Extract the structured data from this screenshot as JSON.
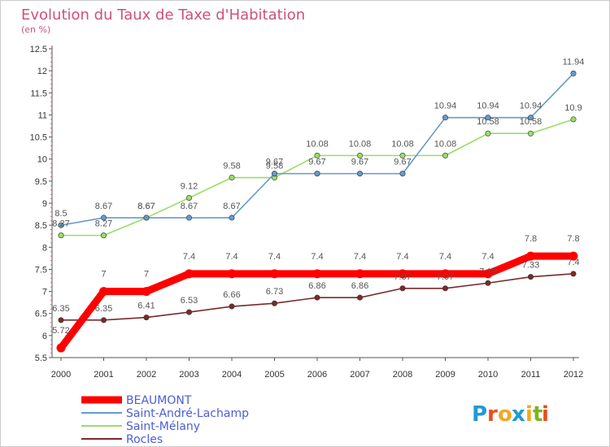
{
  "chart_data": {
    "type": "line",
    "title": "Evolution du Taux de Taxe d'Habitation",
    "subtitle": "(en %)",
    "x": [
      "2000",
      "2001",
      "2002",
      "2003",
      "2004",
      "2005",
      "2006",
      "2007",
      "2008",
      "2009",
      "2010",
      "2011",
      "2012"
    ],
    "ylim": [
      5.5,
      12.5
    ],
    "yticks": [
      "5.5",
      "6",
      "6.5",
      "7",
      "7.5",
      "8",
      "8.5",
      "9",
      "9.5",
      "10",
      "10.5",
      "11",
      "11.5",
      "12",
      "12.5"
    ],
    "grid": false,
    "legend": "bottom-left",
    "series": [
      {
        "name": "BEAUMONT",
        "color": "#ff0000",
        "values": [
          5.72,
          7,
          7,
          7.4,
          7.4,
          7.4,
          7.4,
          7.4,
          7.4,
          7.4,
          7.4,
          7.8,
          7.8
        ],
        "labels": [
          "5.72",
          "7",
          "7",
          "7.4",
          "7.4",
          "7.4",
          "7.4",
          "7.4",
          "7.4",
          "7.4",
          "7.4",
          "7.8",
          "7.8"
        ]
      },
      {
        "name": "Saint-André-Lachamp",
        "color": "#6699cc",
        "values": [
          8.5,
          8.67,
          8.67,
          8.67,
          8.67,
          9.67,
          9.67,
          9.67,
          9.67,
          10.94,
          10.94,
          10.94,
          11.94
        ],
        "labels": [
          "8.5",
          "8.67",
          "8.67",
          "8.67",
          "8.67",
          "9.67",
          "9.67",
          "9.67",
          "9.67",
          "10.94",
          "10.94",
          "10.94",
          "11.94"
        ]
      },
      {
        "name": "Saint-Mélany",
        "color": "#99dd66",
        "values": [
          8.27,
          8.27,
          8.67,
          9.12,
          9.58,
          9.58,
          10.08,
          10.08,
          10.08,
          10.08,
          10.58,
          10.58,
          10.9
        ],
        "labels": [
          "8.27",
          "8.27",
          "8.67",
          "9.12",
          "9.58",
          "9.58",
          "10.08",
          "10.08",
          "10.08",
          "10.08",
          "10.58",
          "10.58",
          "10.9"
        ]
      },
      {
        "name": "Rocles",
        "color": "#7a2a2a",
        "values": [
          6.35,
          6.35,
          6.41,
          6.53,
          6.66,
          6.73,
          6.86,
          6.86,
          7.07,
          7.07,
          7.19,
          7.33,
          7.4
        ],
        "labels": [
          "6.35",
          "6.35",
          "6.41",
          "6.53",
          "6.66",
          "6.73",
          "6.86",
          "6.86",
          "7.07",
          "7.07",
          "7.19",
          "7.33",
          "7.4"
        ]
      }
    ]
  },
  "logo": {
    "text": "Proxiti",
    "letters": [
      "P",
      "r",
      "o",
      "x",
      "i",
      "t",
      "i"
    ],
    "colors": [
      "#1f9ad6",
      "#e84e1b",
      "#f5a623",
      "#1f9ad6",
      "#f5a623",
      "#7ab51d",
      "#e84e1b"
    ]
  }
}
